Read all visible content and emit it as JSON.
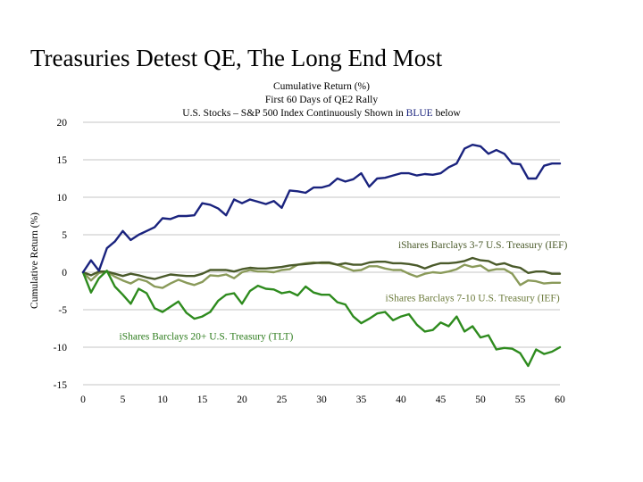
{
  "page_title": "Treasuries Detest QE, The Long End Most",
  "chart_data": {
    "type": "line",
    "title": "Cumulative Return (%)",
    "subtitle": "First 60 Days of QE2 Rally",
    "subtitle2_before": "U.S. Stocks – S&P 500 Index Continuously Shown in ",
    "subtitle2_highlight": "BLUE",
    "subtitle2_after": " below",
    "ylabel": "Cumulative Return (%)",
    "xlabel": "",
    "xlim": [
      0,
      60
    ],
    "ylim": [
      -15,
      20
    ],
    "xticks": [
      "0",
      "5",
      "10",
      "15",
      "20",
      "25",
      "30",
      "35",
      "40",
      "45",
      "50",
      "55",
      "60"
    ],
    "yticks": [
      "20",
      "15",
      "10",
      "5",
      "0",
      "-5",
      "-10",
      "-15"
    ],
    "grid": "horizontal",
    "x": [
      0,
      1,
      2,
      3,
      4,
      5,
      6,
      7,
      8,
      9,
      10,
      11,
      12,
      13,
      14,
      15,
      16,
      17,
      18,
      19,
      20,
      21,
      22,
      23,
      24,
      25,
      26,
      27,
      28,
      29,
      30,
      31,
      32,
      33,
      34,
      35,
      36,
      37,
      38,
      39,
      40,
      41,
      42,
      43,
      44,
      45,
      46,
      47,
      48,
      49,
      50,
      51,
      52,
      53,
      54,
      55,
      56,
      57,
      58,
      59,
      60
    ],
    "series": [
      {
        "name": "",
        "color": "#1a237e",
        "values": [
          0,
          1.6,
          0.2,
          3.2,
          4.1,
          5.5,
          4.3,
          5.0,
          5.5,
          6.0,
          7.2,
          7.1,
          7.5,
          7.5,
          7.6,
          9.2,
          9.0,
          8.5,
          7.6,
          9.7,
          9.2,
          9.7,
          9.4,
          9.1,
          9.5,
          8.6,
          10.9,
          10.8,
          10.6,
          11.3,
          11.3,
          11.6,
          12.5,
          12.1,
          12.4,
          13.2,
          11.4,
          12.5,
          12.6,
          12.9,
          13.2,
          13.2,
          12.9,
          13.1,
          13.0,
          13.2,
          14.0,
          14.5,
          16.5,
          17.0,
          16.8,
          15.8,
          16.3,
          15.8,
          14.5,
          14.4,
          12.5,
          12.5,
          14.2,
          14.5,
          14.5
        ]
      },
      {
        "name": "iShares Barclays 3-7 U.S. Treasury (IEF)",
        "color": "#4a5a2a",
        "values": [
          0,
          -0.4,
          0.1,
          0.1,
          -0.2,
          -0.5,
          -0.2,
          -0.4,
          -0.7,
          -0.9,
          -0.6,
          -0.3,
          -0.4,
          -0.5,
          -0.5,
          -0.2,
          0.3,
          0.3,
          0.3,
          0.1,
          0.4,
          0.6,
          0.5,
          0.5,
          0.6,
          0.7,
          0.9,
          1.0,
          1.1,
          1.2,
          1.3,
          1.3,
          1.0,
          1.2,
          1.0,
          1.0,
          1.3,
          1.4,
          1.4,
          1.2,
          1.2,
          1.1,
          0.9,
          0.5,
          0.9,
          1.2,
          1.2,
          1.3,
          1.5,
          1.9,
          1.6,
          1.5,
          1.0,
          1.2,
          0.8,
          0.6,
          -0.1,
          0.1,
          0.1,
          -0.2,
          -0.2
        ]
      },
      {
        "name": "iShares Barclays 7-10 U.S. Treasury (IEF)",
        "color": "#8a9a5a",
        "values": [
          0,
          -1.1,
          -0.1,
          0.1,
          -0.6,
          -1.1,
          -1.5,
          -0.9,
          -1.2,
          -1.9,
          -2.1,
          -1.5,
          -1.0,
          -1.4,
          -1.7,
          -1.3,
          -0.4,
          -0.5,
          -0.3,
          -0.8,
          0.0,
          0.3,
          0.1,
          0.1,
          0.0,
          0.3,
          0.4,
          1.0,
          1.2,
          1.3,
          1.2,
          1.2,
          1.0,
          0.6,
          0.2,
          0.3,
          0.8,
          0.8,
          0.5,
          0.3,
          0.3,
          -0.2,
          -0.6,
          -0.2,
          0.0,
          -0.1,
          0.1,
          0.4,
          1.0,
          0.7,
          0.9,
          0.2,
          0.4,
          0.4,
          -0.2,
          -1.7,
          -1.1,
          -1.2,
          -1.5,
          -1.4,
          -1.4
        ]
      },
      {
        "name": "iShares Barclays 20+ U.S. Treasury (TLT)",
        "color": "#2e8b1e",
        "values": [
          0,
          -2.7,
          -0.8,
          0.2,
          -1.9,
          -3.0,
          -4.2,
          -2.2,
          -2.8,
          -4.8,
          -5.3,
          -4.6,
          -3.9,
          -5.4,
          -6.2,
          -5.9,
          -5.3,
          -3.8,
          -3.0,
          -2.8,
          -4.2,
          -2.5,
          -1.8,
          -2.2,
          -2.3,
          -2.8,
          -2.6,
          -3.1,
          -1.9,
          -2.7,
          -3.0,
          -3.0,
          -4.0,
          -4.3,
          -5.9,
          -6.8,
          -6.2,
          -5.5,
          -5.3,
          -6.4,
          -5.9,
          -5.6,
          -7.0,
          -7.9,
          -7.7,
          -6.7,
          -7.2,
          -5.9,
          -7.9,
          -7.2,
          -8.7,
          -8.4,
          -10.3,
          -10.1,
          -10.2,
          -10.8,
          -12.5,
          -10.3,
          -10.9,
          -10.6,
          -10.0
        ]
      }
    ],
    "annotations": [
      {
        "text": "iShares Barclays 3-7 U.S. Treasury (IEF)",
        "x": 50.3,
        "y": 3.7,
        "anchor": "middle",
        "color": "#4a5a2a"
      },
      {
        "text": "iShares Barclays 7-10 U.S. Treasury (IEF)",
        "x": 49.0,
        "y": -3.4,
        "anchor": "middle",
        "color": "#6b7a3a"
      },
      {
        "text": "iShares Barclays 20+ U.S. Treasury (TLT)",
        "x": 15.5,
        "y": -8.5,
        "anchor": "middle",
        "color": "#2e7d1e"
      }
    ]
  }
}
